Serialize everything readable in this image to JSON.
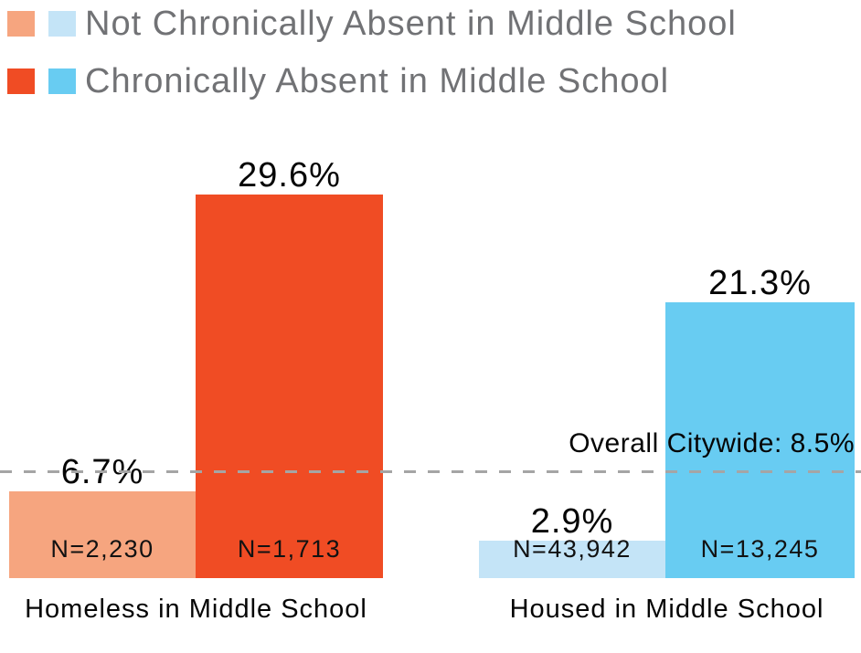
{
  "legend": {
    "items": [
      {
        "label": "Not Chronically Absent in Middle School",
        "swatch_colors": [
          "#F6A57F",
          "#C4E4F7"
        ]
      },
      {
        "label": "Chronically Absent in Middle School",
        "swatch_colors": [
          "#F04C24",
          "#68CCF2"
        ]
      }
    ],
    "text_color": "#717275"
  },
  "chart_data": {
    "type": "bar",
    "title": "",
    "unit": "percent",
    "categories": [
      "Homeless in Middle School",
      "Housed in Middle School"
    ],
    "group_labels": [
      "Homeless in Middle School",
      "Housed in Middle School"
    ],
    "series": [
      {
        "name": "Not Chronically Absent in Middle School",
        "values": [
          6.7,
          2.9
        ],
        "sample_sizes": [
          "N=2,230",
          "N=43,942"
        ],
        "colors": [
          "#F6A57F",
          "#C4E4F7"
        ]
      },
      {
        "name": "Chronically Absent in Middle School",
        "values": [
          29.6,
          21.3
        ],
        "sample_sizes": [
          "N=1,713",
          "N=13,245"
        ],
        "colors": [
          "#F04C24",
          "#68CCF2"
        ]
      }
    ],
    "bars": [
      {
        "group": 0,
        "series": 0,
        "value": 6.7,
        "value_label": "6.7%",
        "n_label": "N=2,230",
        "color": "#F6A57F"
      },
      {
        "group": 0,
        "series": 1,
        "value": 29.6,
        "value_label": "29.6%",
        "n_label": "N=1,713",
        "color": "#F04C24"
      },
      {
        "group": 1,
        "series": 0,
        "value": 2.9,
        "value_label": "2.9%",
        "n_label": "N=43,942",
        "color": "#C4E4F7"
      },
      {
        "group": 1,
        "series": 1,
        "value": 21.3,
        "value_label": "21.3%",
        "n_label": "N=13,245",
        "color": "#68CCF2"
      }
    ],
    "reference_line": {
      "value": 8.5,
      "label": "Overall Citywide: 8.5%",
      "style": "dashed",
      "color": "#A5A5A5"
    },
    "ylim": [
      0,
      33
    ],
    "grid": false,
    "legend_position": "top-left",
    "value_label_color": "#050505"
  }
}
